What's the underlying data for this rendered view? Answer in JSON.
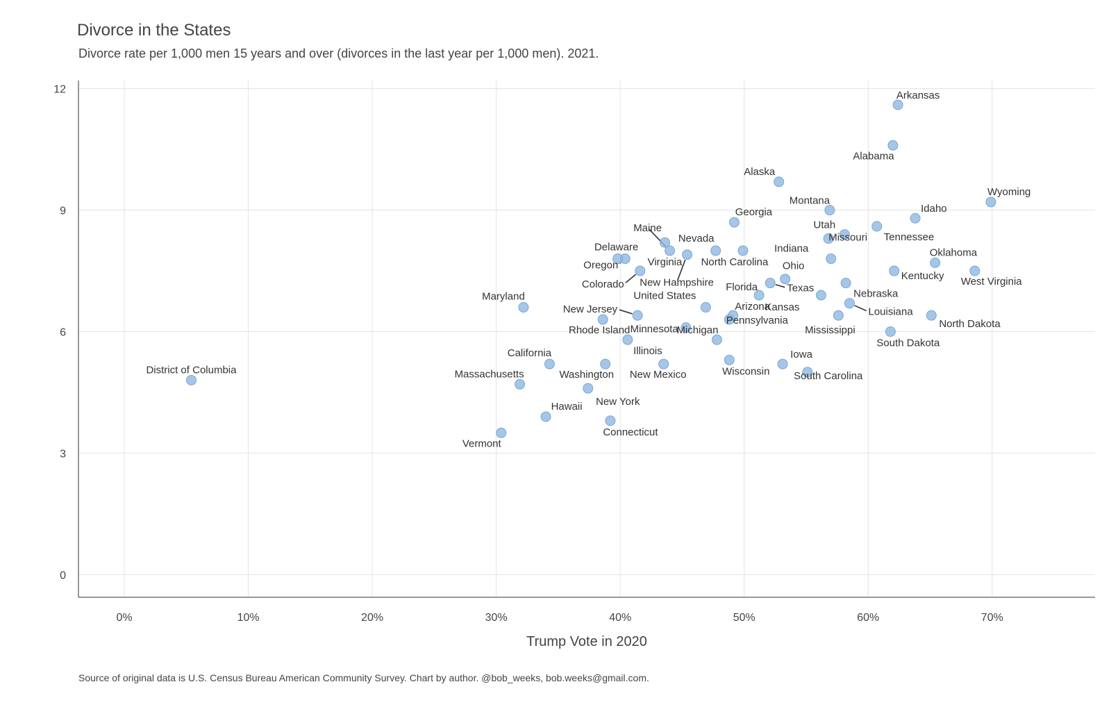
{
  "title": "Divorce in the States",
  "subtitle": "Divorce rate per 1,000 men 15 years and over (divorces in the last year per 1,000 men). 2021.",
  "caption": "Source of original data is U.S. Census Bureau American Community Survey. Chart by author. @bob_weeks, bob.weeks@gmail.com.",
  "chart_data": {
    "type": "scatter",
    "xlabel": "Trump Vote in 2020",
    "ylabel": "",
    "xlim": [
      -3.7,
      78.3
    ],
    "ylim": [
      -0.56,
      12.2
    ],
    "x_ticks": [
      0,
      10,
      20,
      30,
      40,
      50,
      60,
      70
    ],
    "x_tick_labels": [
      "0%",
      "10%",
      "20%",
      "30%",
      "40%",
      "50%",
      "60%",
      "70%"
    ],
    "y_ticks": [
      0,
      3,
      6,
      9,
      12
    ],
    "y_tick_labels": [
      "0",
      "3",
      "6",
      "9",
      "12"
    ],
    "grid": true,
    "point_color": "#8fb8e0",
    "points": [
      {
        "label": "District of Columbia",
        "x": 5.4,
        "y": 4.8
      },
      {
        "label": "Vermont",
        "x": 30.4,
        "y": 3.5
      },
      {
        "label": "Hawaii",
        "x": 34.0,
        "y": 3.9
      },
      {
        "label": "Massachusetts",
        "x": 31.9,
        "y": 4.7
      },
      {
        "label": "California",
        "x": 34.3,
        "y": 5.2
      },
      {
        "label": "Maryland",
        "x": 32.2,
        "y": 6.6
      },
      {
        "label": "New York",
        "x": 37.4,
        "y": 4.6
      },
      {
        "label": "Washington",
        "x": 38.8,
        "y": 5.2
      },
      {
        "label": "Connecticut",
        "x": 39.2,
        "y": 3.8
      },
      {
        "label": "Rhode Island",
        "x": 38.6,
        "y": 6.3
      },
      {
        "label": "Illinois",
        "x": 40.6,
        "y": 5.8
      },
      {
        "label": "New Jersey",
        "x": 41.4,
        "y": 6.4
      },
      {
        "label": "Oregon",
        "x": 40.4,
        "y": 7.8
      },
      {
        "label": "Delaware",
        "x": 39.8,
        "y": 7.8
      },
      {
        "label": "Colorado",
        "x": 41.6,
        "y": 7.5
      },
      {
        "label": "New Mexico",
        "x": 43.5,
        "y": 5.2
      },
      {
        "label": "Maine",
        "x": 44.0,
        "y": 8.0
      },
      {
        "label": "Virginia",
        "x": 43.6,
        "y": 8.2
      },
      {
        "label": "Minnesota",
        "x": 45.3,
        "y": 6.1
      },
      {
        "label": "New Hampshire",
        "x": 45.4,
        "y": 7.9
      },
      {
        "label": "Nevada",
        "x": 47.7,
        "y": 8.0
      },
      {
        "label": "United States",
        "x": 46.9,
        "y": 6.6
      },
      {
        "label": "Michigan",
        "x": 47.8,
        "y": 5.8
      },
      {
        "label": "Pennsylvania",
        "x": 48.8,
        "y": 6.3
      },
      {
        "label": "Wisconsin",
        "x": 48.8,
        "y": 5.3
      },
      {
        "label": "Arizona",
        "x": 49.1,
        "y": 6.4
      },
      {
        "label": "Georgia",
        "x": 49.2,
        "y": 8.7
      },
      {
        "label": "North Carolina",
        "x": 49.9,
        "y": 8.0
      },
      {
        "label": "Florida",
        "x": 51.2,
        "y": 6.9
      },
      {
        "label": "Texas",
        "x": 52.1,
        "y": 7.2
      },
      {
        "label": "Ohio",
        "x": 53.3,
        "y": 7.3
      },
      {
        "label": "Iowa",
        "x": 53.1,
        "y": 5.2
      },
      {
        "label": "Alaska",
        "x": 52.8,
        "y": 9.7
      },
      {
        "label": "South Carolina",
        "x": 55.1,
        "y": 5.0
      },
      {
        "label": "Kansas",
        "x": 56.2,
        "y": 6.9
      },
      {
        "label": "Indiana",
        "x": 57.0,
        "y": 7.8
      },
      {
        "label": "Mississippi",
        "x": 57.6,
        "y": 6.4
      },
      {
        "label": "Montana",
        "x": 56.9,
        "y": 9.0
      },
      {
        "label": "Missouri",
        "x": 56.8,
        "y": 8.3
      },
      {
        "label": "Utah",
        "x": 58.1,
        "y": 8.4
      },
      {
        "label": "Nebraska",
        "x": 58.2,
        "y": 7.2
      },
      {
        "label": "Louisiana",
        "x": 58.5,
        "y": 6.7
      },
      {
        "label": "Tennessee",
        "x": 60.7,
        "y": 8.6
      },
      {
        "label": "South Dakota",
        "x": 61.8,
        "y": 6.0
      },
      {
        "label": "Kentucky",
        "x": 62.1,
        "y": 7.5
      },
      {
        "label": "Alabama",
        "x": 62.0,
        "y": 10.6
      },
      {
        "label": "Arkansas",
        "x": 62.4,
        "y": 11.6
      },
      {
        "label": "Idaho",
        "x": 63.8,
        "y": 8.8
      },
      {
        "label": "North Dakota",
        "x": 65.1,
        "y": 6.4
      },
      {
        "label": "Oklahoma",
        "x": 65.4,
        "y": 7.7
      },
      {
        "label": "West Virginia",
        "x": 68.6,
        "y": 7.5
      },
      {
        "label": "Wyoming",
        "x": 69.9,
        "y": 9.2
      }
    ]
  }
}
